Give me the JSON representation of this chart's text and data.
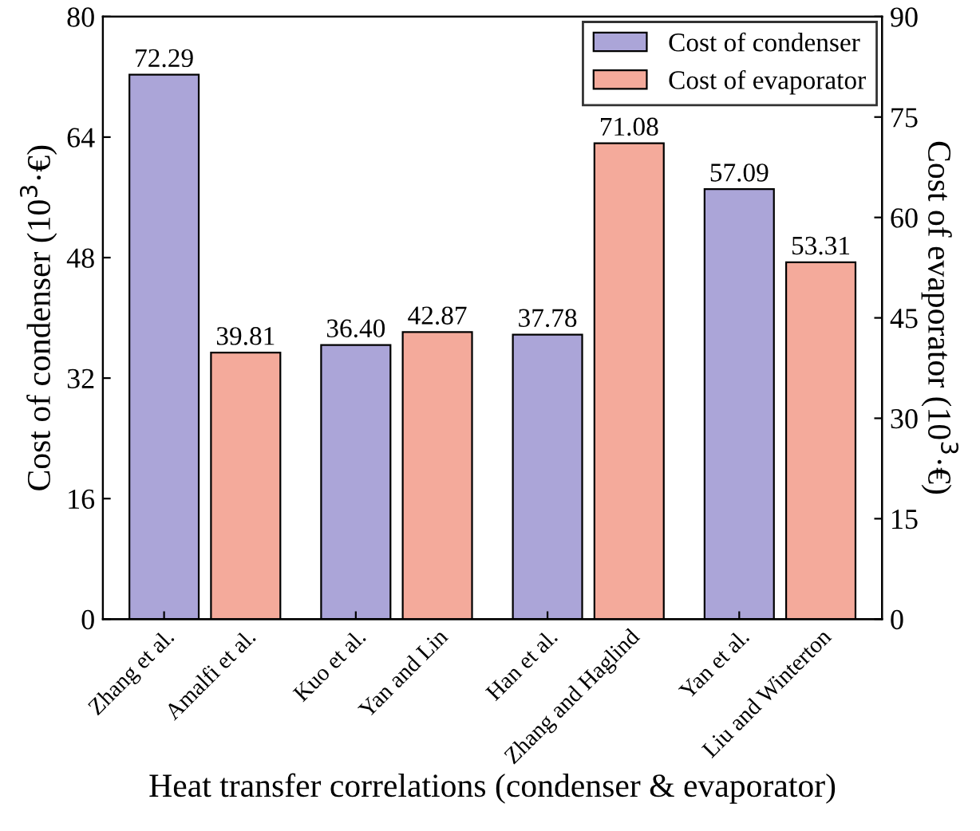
{
  "chart_data": {
    "type": "bar",
    "xlabel": "Heat transfer correlations (condenser & evaporator)",
    "ylabel": "Cost of condenser (10$^{3}$·€)",
    "y2label": "Cost of evaporator (10$^{3}$·€)",
    "categories": [
      "Zhang et al.",
      "Amalfi et al.",
      "Kuo et al.",
      "Yan and Lin",
      "Han et al.",
      "Zhang and Haglind",
      "Yan et al.",
      "Liu and Winterton"
    ],
    "series": [
      {
        "name": "Cost of condenser",
        "color": "#aba5d8",
        "values": [
          72.29,
          null,
          36.4,
          null,
          37.78,
          null,
          57.09,
          null
        ],
        "value_labels": [
          "72.29",
          null,
          "36.40",
          null,
          "37.78",
          null,
          "57.09",
          null
        ]
      },
      {
        "name": "Cost of evaporator",
        "color": "#f4aa9b",
        "axis": "y2",
        "values": [
          null,
          39.81,
          null,
          42.87,
          null,
          71.08,
          null,
          53.31
        ],
        "value_labels": [
          null,
          "39.81",
          null,
          "42.87",
          null,
          "71.08",
          null,
          "53.31"
        ]
      }
    ],
    "ylim": [
      0,
      80
    ],
    "yticks": [
      0,
      16,
      32,
      48,
      64,
      80
    ],
    "y2lim": [
      0,
      90
    ],
    "y2ticks": [
      0,
      15,
      30,
      45,
      60,
      75,
      90
    ],
    "legend": "top right",
    "grid": false
  }
}
